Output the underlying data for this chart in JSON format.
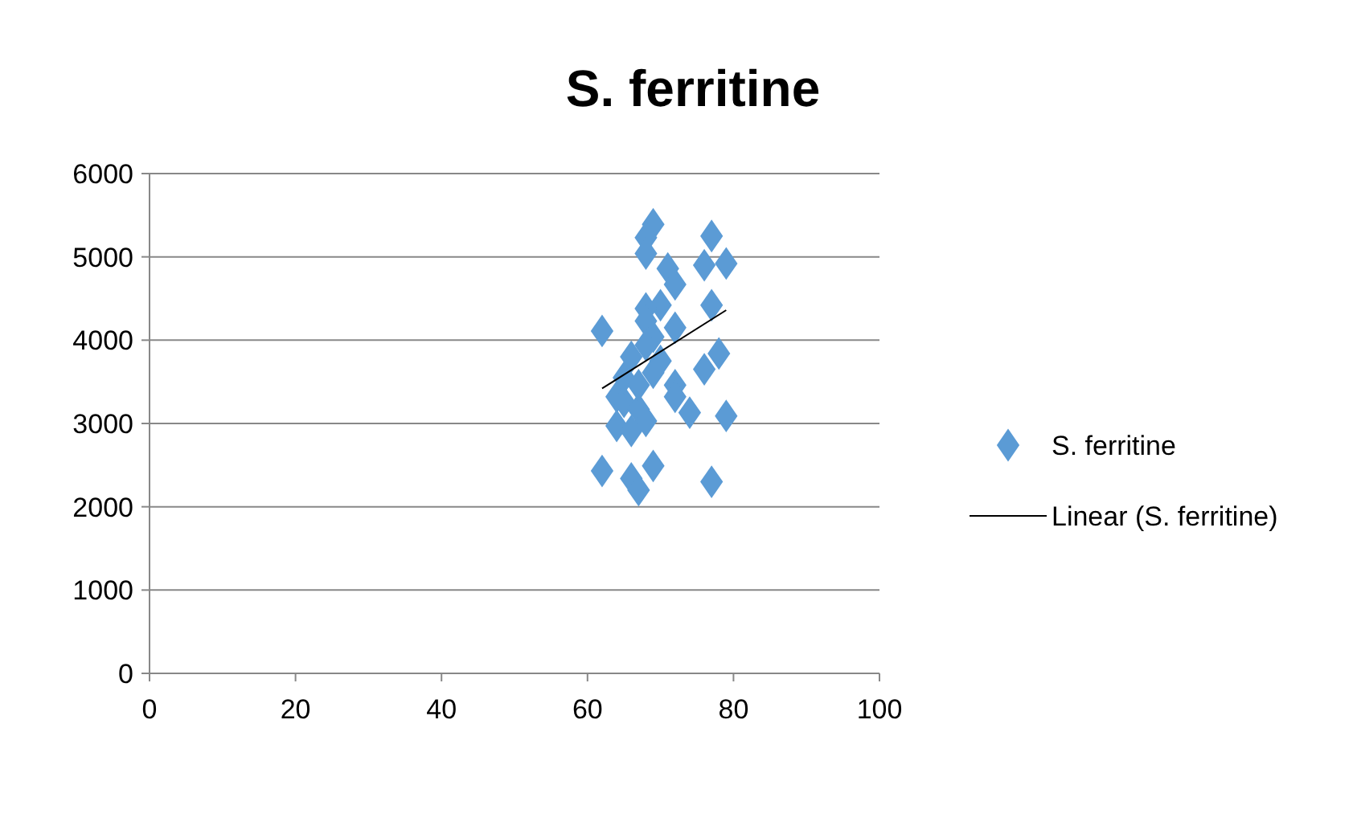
{
  "chart_data": {
    "type": "scatter",
    "title": "S. ferritine",
    "xlim": [
      0,
      100
    ],
    "xticks": [
      0,
      20,
      40,
      60,
      80,
      100
    ],
    "ylim": [
      0,
      6000
    ],
    "yticks": [
      0,
      1000,
      2000,
      3000,
      4000,
      5000,
      6000
    ],
    "grid": "y",
    "legend": "right",
    "series": [
      {
        "name": "S. ferritine",
        "marker": "diamond",
        "color": "#5b9bd5",
        "x": [
          62,
          62,
          69,
          68,
          68,
          77,
          76,
          79,
          71,
          72,
          70,
          68,
          77,
          68,
          72,
          69,
          68,
          70,
          66,
          69,
          72,
          72,
          78,
          76,
          64,
          65,
          67,
          68,
          64,
          66,
          74,
          79,
          66,
          67,
          69,
          77,
          65,
          67
        ],
        "values": [
          4110,
          2430,
          5390,
          5230,
          5040,
          5250,
          4900,
          4920,
          4860,
          4670,
          4420,
          4380,
          4420,
          4230,
          4150,
          4040,
          3940,
          3750,
          3800,
          3610,
          3460,
          3320,
          3840,
          3650,
          3320,
          3260,
          3170,
          3030,
          2970,
          2910,
          3130,
          3090,
          2340,
          2200,
          2490,
          2300,
          3550,
          3460
        ]
      },
      {
        "name": "Linear (S. ferritine)",
        "type": "line",
        "color": "#000000",
        "x": [
          62,
          79
        ],
        "values": [
          3420,
          4360
        ]
      }
    ]
  }
}
